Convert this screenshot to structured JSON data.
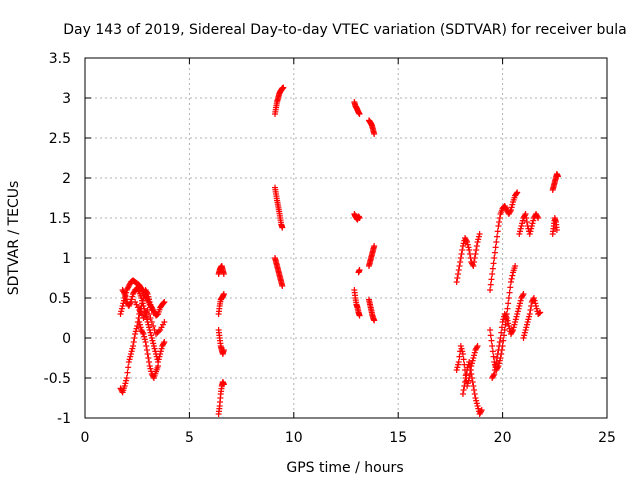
{
  "chart_data": {
    "type": "scatter",
    "title": "Day 143 of 2019, Sidereal Day-to-day VTEC variation (SDTVAR) for receiver bula",
    "xlabel": "GPS time / hours",
    "ylabel": "SDTVAR / TECUs",
    "xlim": [
      0,
      25
    ],
    "ylim": [
      -1,
      3.5
    ],
    "x_ticks": [
      0,
      5,
      10,
      15,
      20,
      25
    ],
    "x_tick_labels": [
      "0",
      "5",
      "10",
      "15",
      "20",
      "25"
    ],
    "y_ticks": [
      -1,
      -0.5,
      0,
      0.5,
      1,
      1.5,
      2,
      2.5,
      3,
      3.5
    ],
    "y_tick_labels": [
      "-1",
      "-0.5",
      "0",
      "0.5",
      "1",
      "1.5",
      "2",
      "2.5",
      "3",
      "3.5"
    ],
    "grid": true,
    "legend": "none",
    "marker": "+",
    "series": [
      {
        "name": "SDTVAR",
        "color": "#ff0000",
        "segments": [
          [
            [
              1.7,
              -0.63
            ],
            [
              1.8,
              -0.68
            ],
            [
              1.9,
              -0.6
            ],
            [
              2.0,
              -0.5
            ],
            [
              2.1,
              -0.3
            ],
            [
              2.2,
              -0.2
            ],
            [
              2.3,
              -0.1
            ],
            [
              2.4,
              0.05
            ],
            [
              2.5,
              0.15
            ],
            [
              2.6,
              0.3
            ],
            [
              2.7,
              0.4
            ],
            [
              2.8,
              0.5
            ],
            [
              2.9,
              0.6
            ],
            [
              3.0,
              0.55
            ],
            [
              3.1,
              0.45
            ],
            [
              3.2,
              0.35
            ]
          ],
          [
            [
              1.7,
              0.3
            ],
            [
              1.8,
              0.4
            ],
            [
              1.9,
              0.5
            ],
            [
              2.0,
              0.6
            ],
            [
              2.1,
              0.65
            ],
            [
              2.2,
              0.7
            ],
            [
              2.3,
              0.72
            ],
            [
              2.4,
              0.7
            ],
            [
              2.5,
              0.68
            ],
            [
              2.6,
              0.66
            ],
            [
              2.7,
              0.62
            ],
            [
              2.8,
              0.58
            ],
            [
              2.9,
              0.52
            ],
            [
              3.0,
              0.48
            ],
            [
              3.1,
              0.42
            ],
            [
              3.2,
              0.38
            ],
            [
              3.3,
              0.33
            ],
            [
              3.4,
              0.28
            ],
            [
              3.5,
              0.3
            ],
            [
              3.6,
              0.38
            ],
            [
              3.7,
              0.42
            ],
            [
              3.8,
              0.45
            ]
          ],
          [
            [
              1.8,
              0.6
            ],
            [
              1.9,
              0.55
            ],
            [
              2.0,
              0.45
            ],
            [
              2.1,
              0.4
            ],
            [
              2.2,
              0.45
            ],
            [
              2.3,
              0.55
            ],
            [
              2.4,
              0.6
            ],
            [
              2.5,
              0.62
            ],
            [
              2.6,
              0.58
            ],
            [
              2.7,
              0.5
            ],
            [
              2.8,
              0.4
            ],
            [
              2.9,
              0.3
            ],
            [
              3.0,
              0.2
            ],
            [
              3.1,
              0.1
            ],
            [
              3.2,
              0.0
            ],
            [
              3.3,
              -0.1
            ],
            [
              3.4,
              -0.2
            ],
            [
              3.5,
              -0.3
            ],
            [
              3.6,
              -0.2
            ],
            [
              3.7,
              -0.1
            ],
            [
              3.8,
              -0.05
            ]
          ],
          [
            [
              2.6,
              0.2
            ],
            [
              2.7,
              0.1
            ],
            [
              2.8,
              0.05
            ],
            [
              2.9,
              -0.05
            ],
            [
              3.0,
              -0.2
            ],
            [
              3.1,
              -0.35
            ],
            [
              3.2,
              -0.45
            ],
            [
              3.3,
              -0.5
            ],
            [
              3.4,
              -0.42
            ],
            [
              3.5,
              -0.35
            ]
          ],
          [
            [
              2.4,
              0.45
            ],
            [
              2.6,
              0.35
            ],
            [
              2.8,
              0.25
            ],
            [
              3.0,
              0.35
            ],
            [
              3.2,
              0.2
            ],
            [
              3.4,
              0.05
            ],
            [
              3.6,
              0.1
            ],
            [
              3.8,
              0.2
            ]
          ],
          [
            [
              6.4,
              -0.95
            ],
            [
              6.45,
              -0.85
            ],
            [
              6.5,
              -0.7
            ],
            [
              6.55,
              -0.6
            ],
            [
              6.6,
              -0.55
            ],
            [
              6.65,
              -0.58
            ]
          ],
          [
            [
              6.4,
              0.1
            ],
            [
              6.45,
              0.0
            ],
            [
              6.5,
              -0.1
            ],
            [
              6.55,
              -0.15
            ],
            [
              6.6,
              -0.2
            ],
            [
              6.65,
              -0.15
            ]
          ],
          [
            [
              6.4,
              0.3
            ],
            [
              6.45,
              0.4
            ],
            [
              6.5,
              0.48
            ],
            [
              6.55,
              0.5
            ],
            [
              6.6,
              0.52
            ],
            [
              6.65,
              0.55
            ]
          ],
          [
            [
              6.4,
              0.8
            ],
            [
              6.45,
              0.85
            ],
            [
              6.5,
              0.88
            ],
            [
              6.55,
              0.9
            ],
            [
              6.6,
              0.85
            ],
            [
              6.65,
              0.8
            ]
          ],
          [
            [
              9.1,
              2.8
            ],
            [
              9.15,
              2.88
            ],
            [
              9.2,
              2.95
            ],
            [
              9.25,
              3.0
            ],
            [
              9.3,
              3.05
            ],
            [
              9.35,
              3.08
            ],
            [
              9.4,
              3.1
            ],
            [
              9.45,
              3.12
            ],
            [
              9.5,
              3.13
            ]
          ],
          [
            [
              9.1,
              1.88
            ],
            [
              9.15,
              1.8
            ],
            [
              9.2,
              1.72
            ],
            [
              9.25,
              1.65
            ],
            [
              9.3,
              1.58
            ],
            [
              9.35,
              1.5
            ],
            [
              9.4,
              1.42
            ],
            [
              9.45,
              1.38
            ]
          ],
          [
            [
              9.1,
              1.0
            ],
            [
              9.15,
              0.95
            ],
            [
              9.2,
              0.9
            ],
            [
              9.25,
              0.85
            ],
            [
              9.3,
              0.8
            ],
            [
              9.35,
              0.75
            ],
            [
              9.4,
              0.7
            ],
            [
              9.45,
              0.65
            ]
          ],
          [
            [
              12.9,
              2.95
            ],
            [
              12.95,
              2.9
            ],
            [
              13.0,
              2.88
            ],
            [
              13.05,
              2.85
            ],
            [
              13.1,
              2.82
            ],
            [
              13.15,
              2.8
            ]
          ],
          [
            [
              12.9,
              1.55
            ],
            [
              12.95,
              1.52
            ],
            [
              13.0,
              1.5
            ],
            [
              13.05,
              1.48
            ],
            [
              13.1,
              1.52
            ],
            [
              13.15,
              1.5
            ]
          ],
          [
            [
              13.1,
              0.82
            ],
            [
              13.15,
              0.85
            ]
          ],
          [
            [
              12.9,
              0.6
            ],
            [
              12.95,
              0.5
            ],
            [
              13.0,
              0.42
            ],
            [
              13.05,
              0.38
            ],
            [
              13.1,
              0.32
            ],
            [
              13.15,
              0.28
            ]
          ],
          [
            [
              13.6,
              2.72
            ],
            [
              13.65,
              2.7
            ],
            [
              13.7,
              2.68
            ],
            [
              13.75,
              2.65
            ],
            [
              13.8,
              2.6
            ],
            [
              13.85,
              2.55
            ]
          ],
          [
            [
              13.6,
              0.9
            ],
            [
              13.65,
              0.95
            ],
            [
              13.7,
              1.0
            ],
            [
              13.75,
              1.05
            ],
            [
              13.8,
              1.1
            ],
            [
              13.85,
              1.15
            ]
          ],
          [
            [
              13.6,
              0.48
            ],
            [
              13.65,
              0.42
            ],
            [
              13.7,
              0.36
            ],
            [
              13.75,
              0.3
            ],
            [
              13.8,
              0.25
            ],
            [
              13.85,
              0.22
            ]
          ],
          [
            [
              17.8,
              0.7
            ],
            [
              17.9,
              0.85
            ],
            [
              18.0,
              1.0
            ],
            [
              18.1,
              1.15
            ],
            [
              18.2,
              1.25
            ],
            [
              18.3,
              1.2
            ],
            [
              18.4,
              1.1
            ],
            [
              18.5,
              0.95
            ],
            [
              18.6,
              0.9
            ],
            [
              18.7,
              1.05
            ],
            [
              18.8,
              1.2
            ],
            [
              18.9,
              1.3
            ]
          ],
          [
            [
              17.8,
              -0.4
            ],
            [
              17.9,
              -0.3
            ],
            [
              18.0,
              -0.1
            ],
            [
              18.1,
              -0.2
            ],
            [
              18.2,
              -0.4
            ],
            [
              18.3,
              -0.6
            ],
            [
              18.4,
              -0.5
            ],
            [
              18.5,
              -0.35
            ],
            [
              18.6,
              -0.25
            ],
            [
              18.7,
              -0.15
            ],
            [
              18.8,
              -0.1
            ]
          ],
          [
            [
              18.1,
              -0.7
            ],
            [
              18.2,
              -0.55
            ],
            [
              18.3,
              -0.4
            ],
            [
              18.4,
              -0.3
            ],
            [
              18.5,
              -0.45
            ],
            [
              18.6,
              -0.6
            ],
            [
              18.7,
              -0.75
            ],
            [
              18.8,
              -0.85
            ],
            [
              18.9,
              -0.95
            ],
            [
              19.0,
              -0.9
            ]
          ],
          [
            [
              19.4,
              0.6
            ],
            [
              19.5,
              0.8
            ],
            [
              19.6,
              1.0
            ],
            [
              19.7,
              1.2
            ],
            [
              19.8,
              1.4
            ],
            [
              19.9,
              1.55
            ],
            [
              20.0,
              1.62
            ],
            [
              20.1,
              1.65
            ],
            [
              20.2,
              1.6
            ],
            [
              20.3,
              1.55
            ],
            [
              20.4,
              1.6
            ],
            [
              20.5,
              1.7
            ],
            [
              20.6,
              1.78
            ],
            [
              20.7,
              1.82
            ]
          ],
          [
            [
              19.4,
              0.1
            ],
            [
              19.5,
              -0.1
            ],
            [
              19.6,
              -0.3
            ],
            [
              19.7,
              -0.4
            ],
            [
              19.8,
              -0.35
            ],
            [
              19.9,
              -0.25
            ],
            [
              20.0,
              -0.1
            ],
            [
              20.1,
              0.1
            ],
            [
              20.2,
              0.3
            ],
            [
              20.3,
              0.5
            ],
            [
              20.4,
              0.7
            ],
            [
              20.5,
              0.82
            ],
            [
              20.6,
              0.9
            ]
          ],
          [
            [
              19.5,
              -0.5
            ],
            [
              19.6,
              -0.45
            ],
            [
              19.7,
              -0.3
            ],
            [
              19.8,
              -0.15
            ],
            [
              19.9,
              0.0
            ],
            [
              20.0,
              0.2
            ],
            [
              20.1,
              0.3
            ],
            [
              20.2,
              0.25
            ],
            [
              20.3,
              0.15
            ],
            [
              20.4,
              0.05
            ],
            [
              20.5,
              0.1
            ],
            [
              20.6,
              0.2
            ],
            [
              20.7,
              0.3
            ],
            [
              20.8,
              0.4
            ],
            [
              20.9,
              0.5
            ],
            [
              21.0,
              0.55
            ]
          ],
          [
            [
              20.8,
              1.3
            ],
            [
              20.9,
              1.4
            ],
            [
              21.0,
              1.5
            ],
            [
              21.1,
              1.55
            ],
            [
              21.2,
              1.4
            ],
            [
              21.3,
              1.3
            ],
            [
              21.4,
              1.4
            ],
            [
              21.5,
              1.5
            ],
            [
              21.6,
              1.55
            ],
            [
              21.7,
              1.5
            ]
          ],
          [
            [
              21.0,
              0.0
            ],
            [
              21.1,
              0.1
            ],
            [
              21.2,
              0.2
            ],
            [
              21.3,
              0.3
            ],
            [
              21.4,
              0.45
            ],
            [
              21.5,
              0.5
            ],
            [
              21.6,
              0.4
            ],
            [
              21.7,
              0.3
            ],
            [
              21.8,
              0.32
            ]
          ],
          [
            [
              22.4,
              1.3
            ],
            [
              22.45,
              1.4
            ],
            [
              22.5,
              1.5
            ],
            [
              22.55,
              1.45
            ],
            [
              22.6,
              1.35
            ]
          ],
          [
            [
              22.4,
              1.85
            ],
            [
              22.45,
              1.9
            ],
            [
              22.5,
              1.95
            ],
            [
              22.55,
              2.0
            ],
            [
              22.6,
              2.05
            ],
            [
              22.65,
              2.02
            ]
          ]
        ]
      }
    ]
  }
}
